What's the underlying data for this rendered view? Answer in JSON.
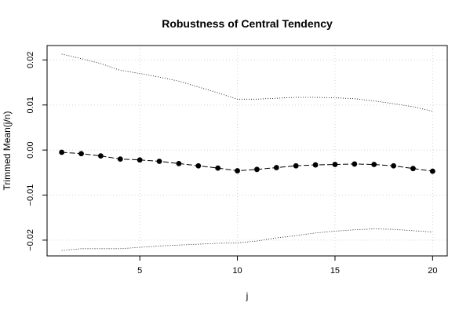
{
  "chart_data": {
    "type": "line",
    "title": "Robustness of Central Tendency",
    "xlabel": "j",
    "ylabel": "Trimmed Mean(j/n)",
    "xlim": [
      0.25,
      20.75
    ],
    "ylim": [
      -0.0235,
      0.0232
    ],
    "xticks": [
      5,
      10,
      15,
      20
    ],
    "yticks": [
      -0.02,
      -0.01,
      0.0,
      0.01,
      0.02
    ],
    "ytick_labels": [
      "−0.02",
      "−0.01",
      "0.00",
      "0.01",
      "0.02"
    ],
    "grid": true,
    "x": [
      1,
      2,
      3,
      4,
      5,
      6,
      7,
      8,
      9,
      10,
      11,
      12,
      13,
      14,
      15,
      16,
      17,
      18,
      19,
      20
    ],
    "series": [
      {
        "values": [
          -0.0005,
          -0.0008,
          -0.0013,
          -0.002,
          -0.0022,
          -0.0025,
          -0.003,
          -0.0035,
          -0.004,
          -0.0046,
          -0.0043,
          -0.0039,
          -0.0035,
          -0.0033,
          -0.0032,
          -0.0031,
          -0.0032,
          -0.0035,
          -0.0041,
          -0.0047
        ],
        "style": "dashed-with-points"
      },
      {
        "values": [
          0.0213,
          0.0203,
          0.0192,
          0.0177,
          0.017,
          0.0162,
          0.0153,
          0.014,
          0.0127,
          0.0113,
          0.0113,
          0.0115,
          0.0117,
          0.0117,
          0.0116,
          0.0114,
          0.0109,
          0.0103,
          0.0096,
          0.0086
        ],
        "style": "dotted"
      },
      {
        "values": [
          -0.0223,
          -0.0219,
          -0.0219,
          -0.0219,
          -0.0216,
          -0.0213,
          -0.0211,
          -0.0209,
          -0.0207,
          -0.0206,
          -0.0202,
          -0.0195,
          -0.019,
          -0.0184,
          -0.018,
          -0.0177,
          -0.0175,
          -0.0176,
          -0.0179,
          -0.0182
        ],
        "style": "dotted"
      }
    ]
  }
}
